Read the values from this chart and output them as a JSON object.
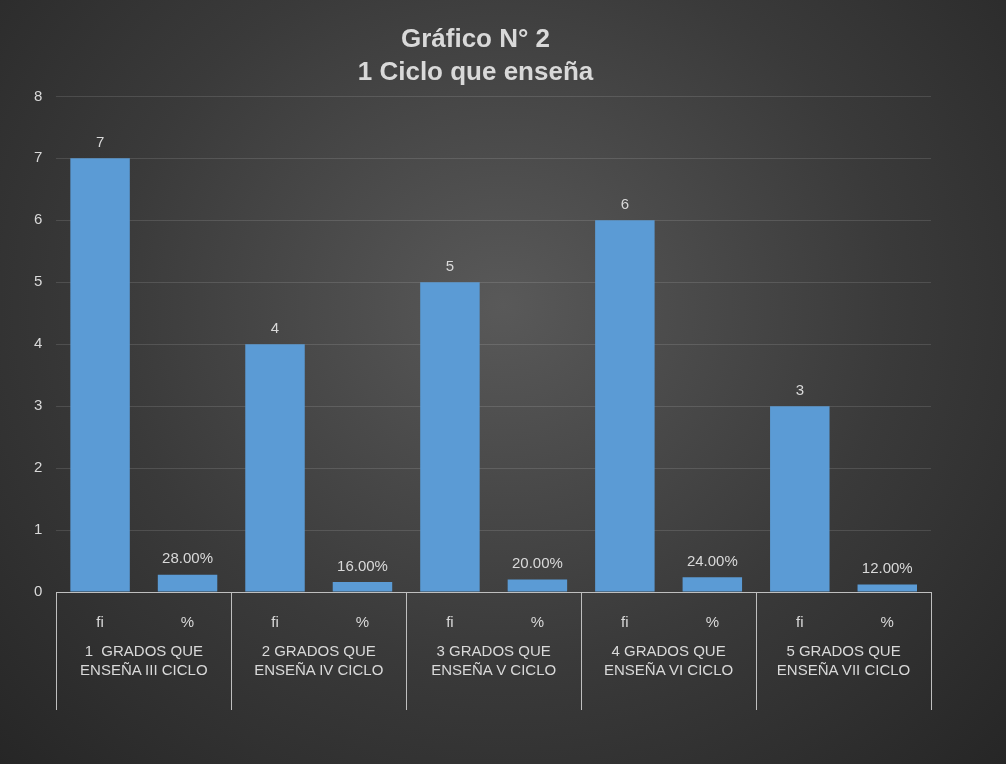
{
  "chart_data": {
    "type": "bar",
    "title": "Gráfico N° 2",
    "subtitle": "1 Ciclo que enseña",
    "categories": [
      "fi",
      "%",
      "fi",
      "%",
      "fi",
      "%",
      "fi",
      "%",
      "fi",
      "%"
    ],
    "values": [
      7,
      0.28,
      4,
      0.16,
      5,
      0.2,
      6,
      0.24,
      3,
      0.12
    ],
    "value_labels": [
      "7",
      "28.00%",
      "4",
      "16.00%",
      "5",
      "20.00%",
      "6",
      "24.00%",
      "3",
      "12.00%"
    ],
    "color": "#5b9bd5",
    "annotations": [
      "1  GRADOS QUE ENSEÑA III CICLO",
      "2 GRADOS QUE ENSEÑA IV CICLO",
      "3 GRADOS QUE ENSEÑA V CICLO",
      "4 GRADOS QUE ENSEÑA VI CICLO",
      "5 GRADOS QUE ENSEÑA VII CICLO"
    ],
    "ylim": [
      0,
      8
    ],
    "yticks": [
      0,
      1,
      2,
      3,
      4,
      5,
      6,
      7,
      8
    ],
    "grid": "y",
    "legend": false
  }
}
